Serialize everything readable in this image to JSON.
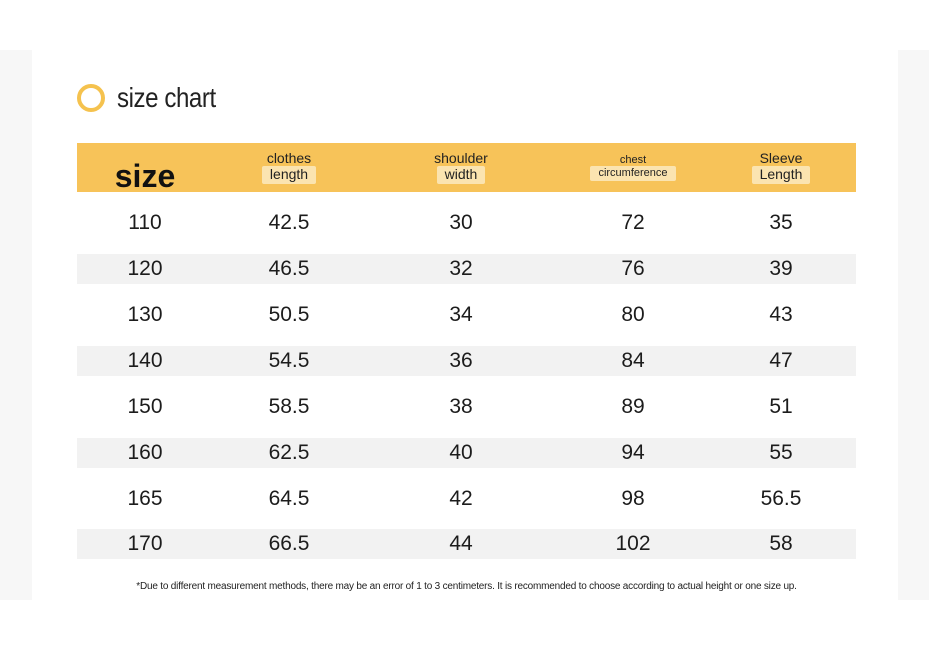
{
  "title": "size chart",
  "header": {
    "size": "size",
    "clothes_length": [
      "clothes",
      "length"
    ],
    "shoulder_width": [
      "shoulder",
      "width"
    ],
    "chest_circumference": [
      "chest",
      "circumference"
    ],
    "sleeve_length": [
      "Sleeve",
      "Length"
    ]
  },
  "rows": [
    [
      "110",
      "42.5",
      "30",
      "72",
      "35"
    ],
    [
      "120",
      "46.5",
      "32",
      "76",
      "39"
    ],
    [
      "130",
      "50.5",
      "34",
      "80",
      "43"
    ],
    [
      "140",
      "54.5",
      "36",
      "84",
      "47"
    ],
    [
      "150",
      "58.5",
      "38",
      "89",
      "51"
    ],
    [
      "160",
      "62.5",
      "40",
      "94",
      "55"
    ],
    [
      "165",
      "64.5",
      "42",
      "98",
      "56.5"
    ],
    [
      "170",
      "66.5",
      "44",
      "102",
      "58"
    ]
  ],
  "note": "*Due to different measurement methods, there may be an error of 1 to 3 centimeters. It is recommended to choose according to actual height or one size up.",
  "colors": {
    "accent": "#f7c359",
    "accent_light": "#fbe4b0",
    "ring": "#f5c24e",
    "row_alt": "#f2f2f2"
  }
}
